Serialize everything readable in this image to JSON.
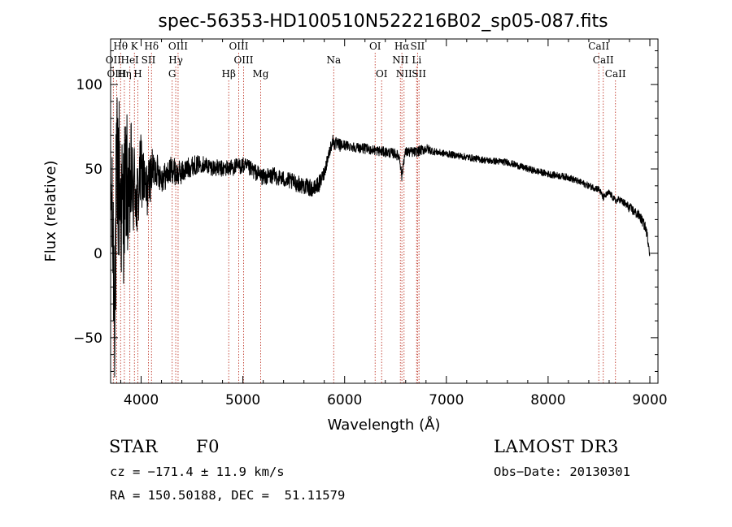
{
  "chart_data": {
    "type": "line",
    "title": "spec-56353-HD100510N522216B02_sp05-087.fits",
    "xlabel": "Wavelength (Å)",
    "ylabel": "Flux (relative)",
    "xlim": [
      3700,
      9080
    ],
    "ylim": [
      -77,
      127
    ],
    "xticks": [
      4000,
      5000,
      6000,
      7000,
      8000,
      9000
    ],
    "xtick_labels": [
      "4000",
      "5000",
      "6000",
      "7000",
      "8000",
      "9000"
    ],
    "yticks": [
      -50,
      0,
      50,
      100
    ],
    "ytick_labels": [
      "−50",
      "0",
      "50",
      "100"
    ],
    "spectrum": {
      "name": "flux",
      "x": [
        3700,
        3720,
        3740,
        3760,
        3780,
        3800,
        3820,
        3840,
        3860,
        3880,
        3900,
        3920,
        3940,
        3960,
        3980,
        4000,
        4050,
        4100,
        4150,
        4200,
        4250,
        4300,
        4350,
        4400,
        4500,
        4600,
        4700,
        4800,
        4900,
        5000,
        5100,
        5200,
        5300,
        5400,
        5500,
        5600,
        5700,
        5760,
        5800,
        5840,
        5860,
        5880,
        5900,
        5950,
        6000,
        6100,
        6200,
        6300,
        6400,
        6500,
        6540,
        6563,
        6580,
        6600,
        6700,
        6800,
        6900,
        7000,
        7200,
        7400,
        7600,
        7800,
        8000,
        8200,
        8400,
        8500,
        8542,
        8600,
        8662,
        8700,
        8800,
        8900,
        8960,
        8990,
        9000
      ],
      "y": [
        45,
        10,
        -20,
        35,
        48,
        30,
        20,
        40,
        44,
        25,
        45,
        35,
        42,
        28,
        40,
        50,
        35,
        48,
        50,
        45,
        46,
        50,
        47,
        48,
        52,
        53,
        51,
        50,
        51,
        52,
        49,
        45,
        46,
        44,
        42,
        40,
        38,
        42,
        48,
        58,
        62,
        67,
        65,
        64,
        64,
        63,
        62,
        61,
        60,
        59,
        57,
        45,
        55,
        60,
        60,
        62,
        60,
        59,
        57,
        55,
        54,
        50,
        47,
        45,
        40,
        38,
        33,
        36,
        31,
        32,
        27,
        22,
        15,
        5,
        0
      ],
      "noise": [
        25,
        45,
        60,
        60,
        55,
        50,
        48,
        42,
        40,
        38,
        35,
        30,
        28,
        26,
        24,
        22,
        18,
        14,
        10,
        9,
        8,
        8,
        8,
        7,
        6,
        5,
        5,
        5,
        5,
        5,
        5,
        5,
        5,
        5,
        5,
        5,
        5,
        5,
        4,
        4,
        4,
        4,
        4,
        4,
        3,
        3,
        3,
        3,
        3,
        3,
        3,
        3,
        3,
        3,
        3,
        3,
        2,
        2,
        2,
        2,
        2,
        2,
        2,
        2,
        2,
        2,
        2,
        2,
        2,
        2,
        3,
        3,
        3,
        3,
        3
      ]
    },
    "lines": [
      {
        "label": "Hθ",
        "wavelength": 3798,
        "row": 0
      },
      {
        "label": "K",
        "wavelength": 3934,
        "row": 0
      },
      {
        "label": "Hδ",
        "wavelength": 4102,
        "row": 0
      },
      {
        "label": "OIII",
        "wavelength": 4363,
        "row": 0
      },
      {
        "label": "OIII",
        "wavelength": 4959,
        "row": 0
      },
      {
        "label": "OI",
        "wavelength": 6300,
        "row": 0
      },
      {
        "label": "Hα",
        "wavelength": 6563,
        "row": 0
      },
      {
        "label": "SII",
        "wavelength": 6717,
        "row": 0
      },
      {
        "label": "CaII",
        "wavelength": 8498,
        "row": 0
      },
      {
        "label": "OII",
        "wavelength": 3727,
        "row": 1
      },
      {
        "label": "HeI",
        "wavelength": 3889,
        "row": 1
      },
      {
        "label": "SII",
        "wavelength": 4072,
        "row": 1
      },
      {
        "label": "Hγ",
        "wavelength": 4340,
        "row": 1
      },
      {
        "label": "OIII",
        "wavelength": 5007,
        "row": 1
      },
      {
        "label": "Na",
        "wavelength": 5893,
        "row": 1
      },
      {
        "label": "NII",
        "wavelength": 6548,
        "row": 1
      },
      {
        "label": "Li",
        "wavelength": 6708,
        "row": 1
      },
      {
        "label": "CaII",
        "wavelength": 8542,
        "row": 1
      },
      {
        "label": "OIII",
        "wavelength": 3760,
        "row": 2
      },
      {
        "label": "Hη",
        "wavelength": 3835,
        "row": 2
      },
      {
        "label": "H",
        "wavelength": 3968,
        "row": 2
      },
      {
        "label": "G",
        "wavelength": 4305,
        "row": 2
      },
      {
        "label": "Hβ",
        "wavelength": 4861,
        "row": 2
      },
      {
        "label": "Mg",
        "wavelength": 5175,
        "row": 2
      },
      {
        "label": "OI",
        "wavelength": 6364,
        "row": 2
      },
      {
        "label": "NII",
        "wavelength": 6584,
        "row": 2
      },
      {
        "label": "SII",
        "wavelength": 6731,
        "row": 2
      },
      {
        "label": "CaII",
        "wavelength": 8662,
        "row": 2
      }
    ]
  },
  "info": {
    "class": "STAR",
    "subclass": "F0",
    "survey": "LAMOST DR3",
    "cz": "cz = −171.4 ± 11.9 km/s",
    "obs_date": "Obs−Date: 20130301",
    "radec": "RA = 150.50188, DEC =  51.11579"
  }
}
